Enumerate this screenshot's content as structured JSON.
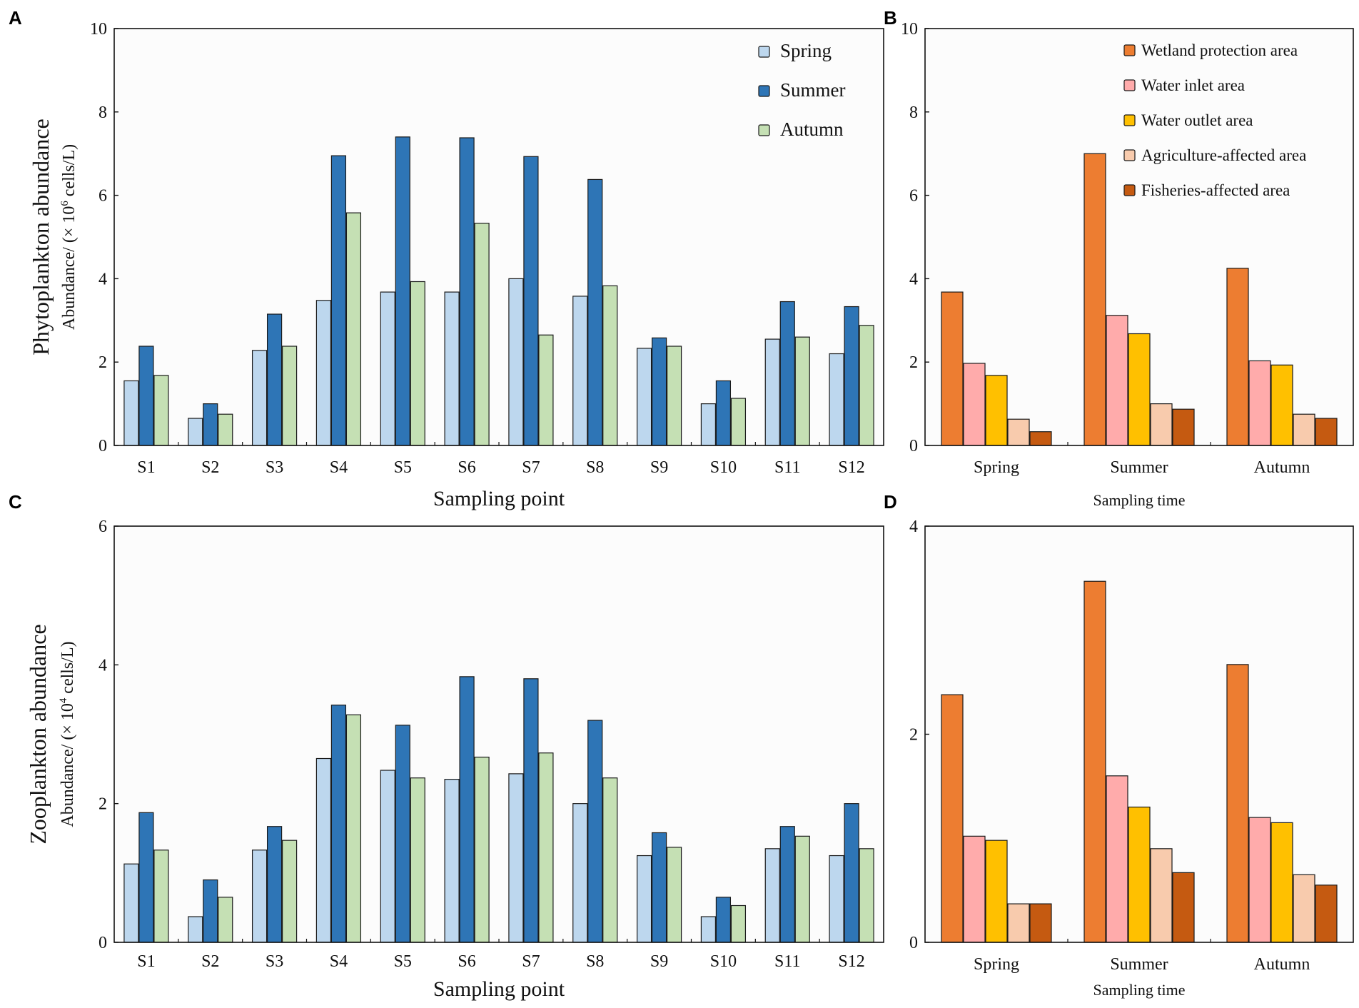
{
  "chart_data": [
    {
      "panel": "A",
      "type": "bar",
      "ylabel_main": "Phytoplankton abundance",
      "ylabel_unit": "Abundance/ (× 10",
      "ylabel_unit_exp": "6",
      "ylabel_unit_tail": " cells/L)",
      "xlabel": "Sampling point",
      "ylim": [
        0,
        10
      ],
      "yticks": [
        "0",
        "2",
        "4",
        "6",
        "8",
        "10"
      ],
      "categories": [
        "S1",
        "S2",
        "S3",
        "S4",
        "S5",
        "S6",
        "S7",
        "S8",
        "S9",
        "S10",
        "S11",
        "S12"
      ],
      "legend_position": "top-right",
      "series": [
        {
          "name": "Spring",
          "color": "#bdd7ee",
          "values": [
            1.55,
            0.65,
            2.28,
            3.48,
            3.68,
            3.68,
            4.0,
            3.58,
            2.33,
            1.0,
            2.55,
            2.2
          ]
        },
        {
          "name": "Summer",
          "color": "#2e75b6",
          "values": [
            2.38,
            1.0,
            3.15,
            6.95,
            7.4,
            7.38,
            6.93,
            6.38,
            2.58,
            1.55,
            3.45,
            3.33
          ]
        },
        {
          "name": "Autumn",
          "color": "#c5e0b4",
          "values": [
            1.68,
            0.75,
            2.38,
            5.58,
            3.93,
            5.33,
            2.65,
            3.83,
            2.38,
            1.13,
            2.6,
            2.88
          ]
        }
      ]
    },
    {
      "panel": "B",
      "type": "bar",
      "xlabel": "Sampling time",
      "ylim": [
        0,
        10
      ],
      "yticks": [
        "0",
        "2",
        "4",
        "6",
        "8",
        "10"
      ],
      "categories": [
        "Spring",
        "Summer",
        "Autumn"
      ],
      "legend_position": "top-right",
      "series": [
        {
          "name": "Wetland protection area",
          "color": "#ed7d31",
          "values": [
            3.68,
            7.0,
            4.25
          ]
        },
        {
          "name": "Water inlet area",
          "color": "#ffabab",
          "values": [
            1.97,
            3.12,
            2.03
          ]
        },
        {
          "name": "Water outlet area",
          "color": "#ffc000",
          "values": [
            1.68,
            2.68,
            1.93
          ]
        },
        {
          "name": "Agriculture-affected area",
          "color": "#f8cbad",
          "values": [
            0.63,
            1.0,
            0.75
          ]
        },
        {
          "name": "Fisheries-affected area",
          "color": "#c55a11",
          "values": [
            0.33,
            0.87,
            0.65
          ]
        }
      ]
    },
    {
      "panel": "C",
      "type": "bar",
      "ylabel_main": "Zooplankton abundance",
      "ylabel_unit": "Abundance/ (× 10",
      "ylabel_unit_exp": "4",
      "ylabel_unit_tail": " cells/L)",
      "xlabel": "Sampling point",
      "ylim": [
        0,
        6
      ],
      "yticks": [
        "0",
        "2",
        "4",
        "6"
      ],
      "categories": [
        "S1",
        "S2",
        "S3",
        "S4",
        "S5",
        "S6",
        "S7",
        "S8",
        "S9",
        "S10",
        "S11",
        "S12"
      ],
      "series": [
        {
          "name": "Spring",
          "color": "#bdd7ee",
          "values": [
            1.13,
            0.37,
            1.33,
            2.65,
            2.48,
            2.35,
            2.43,
            2.0,
            1.25,
            0.37,
            1.35,
            1.25
          ]
        },
        {
          "name": "Summer",
          "color": "#2e75b6",
          "values": [
            1.87,
            0.9,
            1.67,
            3.42,
            3.13,
            3.83,
            3.8,
            3.2,
            1.58,
            0.65,
            1.67,
            2.0
          ]
        },
        {
          "name": "Autumn",
          "color": "#c5e0b4",
          "values": [
            1.33,
            0.65,
            1.47,
            3.28,
            2.37,
            2.67,
            2.73,
            2.37,
            1.37,
            0.53,
            1.53,
            1.35
          ]
        }
      ]
    },
    {
      "panel": "D",
      "type": "bar",
      "xlabel": "Sampling time",
      "ylim": [
        0,
        4
      ],
      "yticks": [
        "0",
        "2",
        "4"
      ],
      "categories": [
        "Spring",
        "Summer",
        "Autumn"
      ],
      "series": [
        {
          "name": "Wetland protection area",
          "color": "#ed7d31",
          "values": [
            2.38,
            3.47,
            2.67
          ]
        },
        {
          "name": "Water inlet area",
          "color": "#ffabab",
          "values": [
            1.02,
            1.6,
            1.2
          ]
        },
        {
          "name": "Water outlet area",
          "color": "#ffc000",
          "values": [
            0.98,
            1.3,
            1.15
          ]
        },
        {
          "name": "Agriculture-affected area",
          "color": "#f8cbad",
          "values": [
            0.37,
            0.9,
            0.65
          ]
        },
        {
          "name": "Fisheries-affected area",
          "color": "#c55a11",
          "values": [
            0.37,
            0.67,
            0.55
          ]
        }
      ]
    }
  ]
}
